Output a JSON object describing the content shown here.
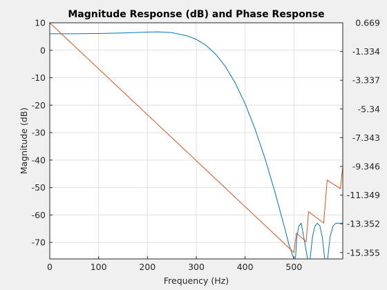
{
  "chart_data": {
    "type": "line",
    "title": "Magnitude Response (dB) and Phase Response",
    "xlabel": "Frequency (Hz)",
    "ylabel": "Magnitude (dB)",
    "y2label": "",
    "xlim": [
      0,
      600
    ],
    "ylim": [
      -76,
      10
    ],
    "y2lim": [
      -15.8,
      0.669
    ],
    "xticks": [
      0,
      100,
      200,
      300,
      400,
      500
    ],
    "yticks": [
      10,
      0,
      -10,
      -20,
      -30,
      -40,
      -50,
      -60,
      -70
    ],
    "y2ticks": [
      "0.669",
      "-1.334",
      "-3.337",
      "-5.34",
      "-7.343",
      "-9.346",
      "-11.349",
      "-13.352",
      "-15.355"
    ],
    "grid": true,
    "colors": {
      "magnitude": "#0072bd",
      "phase": "#d95319"
    },
    "series": [
      {
        "axis": "left",
        "x": [
          0,
          50,
          100,
          150,
          200,
          220,
          250,
          280,
          300,
          320,
          340,
          360,
          380,
          400,
          420,
          440,
          460,
          470,
          480,
          490,
          500,
          503,
          506,
          510,
          515,
          520,
          528,
          533,
          538,
          543,
          548,
          553,
          558,
          563,
          566,
          569,
          574,
          580,
          586,
          592,
          600
        ],
        "y": [
          6,
          6,
          6.1,
          6.3,
          6.6,
          6.7,
          6.4,
          5.3,
          4,
          1.8,
          -1.5,
          -6,
          -12,
          -19.5,
          -28.5,
          -39,
          -51,
          -57.5,
          -64,
          -71,
          -76,
          -76,
          -68,
          -64,
          -63,
          -68,
          -76,
          -76,
          -68,
          -64,
          -63,
          -64,
          -68,
          -76,
          -76,
          -76,
          -68,
          -64,
          -63,
          -63,
          -63
        ]
      },
      {
        "axis": "right",
        "x": [
          0,
          500,
          505,
          525,
          530,
          561,
          568,
          595,
          600
        ],
        "y": [
          0.669,
          -15.355,
          -14.0,
          -14.6,
          -12.5,
          -13.3,
          -10.3,
          -10.9,
          -9.346
        ]
      }
    ]
  }
}
